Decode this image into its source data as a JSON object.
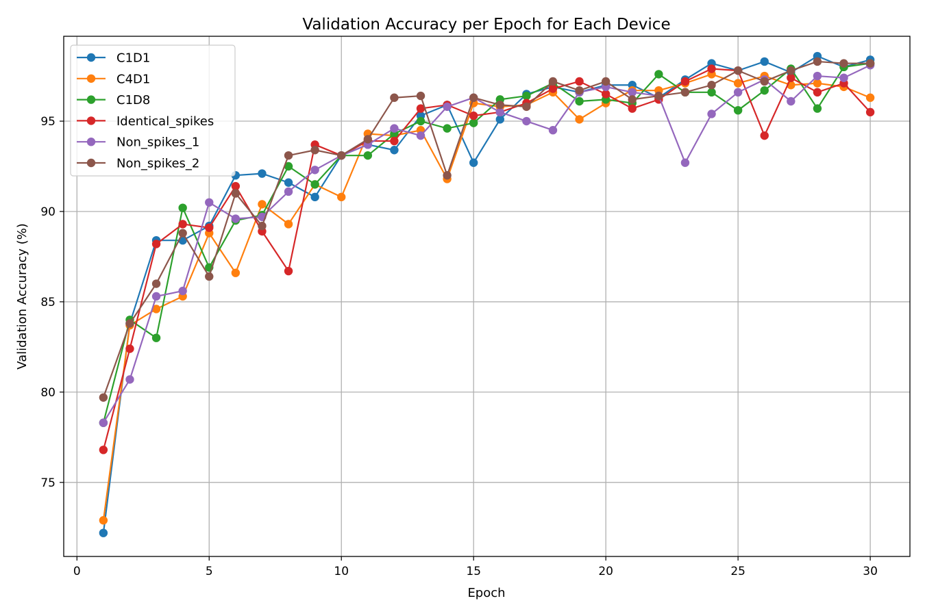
{
  "chart_data": {
    "type": "line",
    "title": "Validation Accuracy per Epoch for Each Device",
    "xlabel": "Epoch",
    "ylabel": "Validation Accuracy (%)",
    "xlim": [
      -0.5,
      31.5
    ],
    "ylim": [
      70.9,
      99.7
    ],
    "xticks": [
      0,
      5,
      10,
      15,
      20,
      25,
      30
    ],
    "yticks": [
      75,
      80,
      85,
      90,
      95
    ],
    "grid": true,
    "legend_position": "upper-left",
    "x": [
      1,
      2,
      3,
      4,
      5,
      6,
      7,
      8,
      9,
      10,
      11,
      12,
      13,
      14,
      15,
      16,
      17,
      18,
      19,
      20,
      21,
      22,
      23,
      24,
      25,
      26,
      27,
      28,
      29,
      30
    ],
    "series": [
      {
        "name": "C1D1",
        "color": "#1f77b4",
        "values": [
          72.2,
          83.8,
          88.4,
          88.4,
          89.2,
          92.0,
          92.1,
          91.6,
          90.8,
          93.1,
          93.7,
          93.4,
          95.3,
          95.9,
          92.7,
          95.1,
          96.5,
          96.9,
          96.6,
          97.0,
          97.0,
          96.3,
          97.3,
          98.2,
          97.8,
          98.3,
          97.7,
          98.6,
          98.0,
          98.4
        ]
      },
      {
        "name": "C4D1",
        "color": "#ff7f0e",
        "values": [
          72.9,
          83.7,
          84.6,
          85.3,
          88.8,
          86.6,
          90.4,
          89.3,
          91.5,
          90.8,
          94.3,
          94.2,
          94.5,
          91.8,
          96.0,
          95.8,
          95.9,
          96.6,
          95.1,
          96.0,
          96.7,
          96.7,
          97.1,
          97.6,
          97.1,
          97.5,
          97.0,
          97.1,
          96.9,
          96.3
        ]
      },
      {
        "name": "C1D8",
        "color": "#2ca02c",
        "values": [
          78.3,
          84.0,
          83.0,
          90.2,
          86.9,
          89.5,
          89.8,
          92.5,
          91.5,
          93.1,
          93.1,
          94.3,
          95.0,
          94.6,
          94.9,
          96.2,
          96.4,
          97.1,
          96.1,
          96.2,
          96.0,
          97.6,
          96.6,
          96.6,
          95.6,
          96.7,
          97.9,
          95.7,
          98.0,
          98.2
        ]
      },
      {
        "name": "Identical_spikes",
        "color": "#d62728",
        "values": [
          76.8,
          82.4,
          88.2,
          89.3,
          89.1,
          91.4,
          88.9,
          86.7,
          93.7,
          93.1,
          93.9,
          93.9,
          95.7,
          95.9,
          95.3,
          95.5,
          96.0,
          96.8,
          97.2,
          96.5,
          95.7,
          96.2,
          97.2,
          97.9,
          97.8,
          94.2,
          97.4,
          96.6,
          97.1,
          95.5
        ]
      },
      {
        "name": "Non_spikes_1",
        "color": "#9467bd",
        "values": [
          78.3,
          80.7,
          85.3,
          85.6,
          90.5,
          89.6,
          89.7,
          91.1,
          92.3,
          93.1,
          93.7,
          94.6,
          94.2,
          95.8,
          96.3,
          95.5,
          95.0,
          94.5,
          96.6,
          96.9,
          96.6,
          96.4,
          92.7,
          95.4,
          96.6,
          97.3,
          96.1,
          97.5,
          97.4,
          98.1
        ]
      },
      {
        "name": "Non_spikes_2",
        "color": "#8c564b",
        "values": [
          79.7,
          83.8,
          86.0,
          88.8,
          86.4,
          91.0,
          89.2,
          93.1,
          93.4,
          93.1,
          94.0,
          96.3,
          96.4,
          92.0,
          96.3,
          95.9,
          95.8,
          97.2,
          96.7,
          97.2,
          96.2,
          96.4,
          96.6,
          97.0,
          97.8,
          97.2,
          97.8,
          98.3,
          98.2,
          98.2
        ]
      }
    ]
  }
}
